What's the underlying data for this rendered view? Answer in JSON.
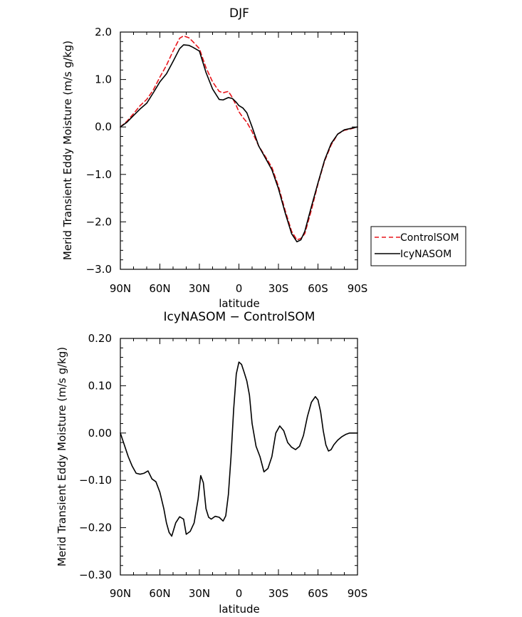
{
  "chart_data": [
    {
      "type": "line",
      "title": "DJF",
      "xlabel": "latitude",
      "ylabel": "Merid Transient Eddy Moisture (m/s g/kg)",
      "xlim": [
        90,
        -90
      ],
      "ylim": [
        -3.0,
        2.0
      ],
      "x_ticks": [
        90,
        60,
        30,
        0,
        -30,
        -60,
        -90
      ],
      "x_tick_labels": [
        "90N",
        "60N",
        "30N",
        "0",
        "30S",
        "60S",
        "90S"
      ],
      "y_ticks": [
        2.0,
        1.0,
        0.0,
        -1.0,
        -2.0,
        -3.0
      ],
      "y_tick_labels": [
        "2.0",
        "1.0",
        "0.0",
        "−1.0",
        "−2.0",
        "−3.0"
      ],
      "legend_position": "right",
      "series": [
        {
          "name": "ControlSOM",
          "color": "#e8151b",
          "dash": "dashed",
          "x": [
            90,
            85,
            80,
            75,
            70,
            65,
            60,
            55,
            50,
            45,
            42,
            38,
            35,
            30,
            25,
            20,
            15,
            12,
            8,
            5,
            2,
            0,
            -3,
            -6,
            -10,
            -15,
            -20,
            -25,
            -30,
            -35,
            -40,
            -44,
            -47,
            -50,
            -55,
            -60,
            -65,
            -70,
            -75,
            -80,
            -85,
            -90
          ],
          "y": [
            0.0,
            0.12,
            0.28,
            0.45,
            0.58,
            0.78,
            1.05,
            1.3,
            1.6,
            1.87,
            1.92,
            1.88,
            1.8,
            1.65,
            1.25,
            0.95,
            0.75,
            0.72,
            0.75,
            0.62,
            0.45,
            0.32,
            0.2,
            0.1,
            -0.1,
            -0.4,
            -0.62,
            -0.85,
            -1.25,
            -1.75,
            -2.2,
            -2.38,
            -2.35,
            -2.25,
            -1.75,
            -1.2,
            -0.72,
            -0.38,
            -0.15,
            -0.07,
            -0.04,
            0.0
          ]
        },
        {
          "name": "IcyNASOM",
          "color": "#000000",
          "dash": "solid",
          "x": [
            90,
            85,
            80,
            75,
            70,
            65,
            60,
            55,
            50,
            45,
            42,
            38,
            35,
            30,
            25,
            20,
            15,
            12,
            8,
            5,
            2,
            0,
            -3,
            -6,
            -10,
            -15,
            -20,
            -25,
            -30,
            -35,
            -40,
            -44,
            -47,
            -50,
            -55,
            -60,
            -65,
            -70,
            -75,
            -80,
            -85,
            -90
          ],
          "y": [
            0.0,
            0.1,
            0.24,
            0.38,
            0.5,
            0.72,
            0.95,
            1.12,
            1.38,
            1.65,
            1.73,
            1.72,
            1.68,
            1.6,
            1.15,
            0.8,
            0.58,
            0.57,
            0.62,
            0.6,
            0.52,
            0.45,
            0.4,
            0.3,
            0.0,
            -0.4,
            -0.65,
            -0.9,
            -1.3,
            -1.8,
            -2.25,
            -2.42,
            -2.38,
            -2.2,
            -1.68,
            -1.18,
            -0.7,
            -0.35,
            -0.15,
            -0.06,
            -0.03,
            0.0
          ]
        }
      ]
    },
    {
      "type": "line",
      "title": "IcyNASOM − ControlSOM",
      "xlabel": "latitude",
      "ylabel": "Merid Transient Eddy Moisture (m/s g/kg)",
      "xlim": [
        90,
        -90
      ],
      "ylim": [
        -0.3,
        0.2
      ],
      "x_ticks": [
        90,
        60,
        30,
        0,
        -30,
        -60,
        -90
      ],
      "x_tick_labels": [
        "90N",
        "60N",
        "30N",
        "0",
        "30S",
        "60S",
        "90S"
      ],
      "y_ticks": [
        0.2,
        0.1,
        0.0,
        -0.1,
        -0.2,
        -0.3
      ],
      "y_tick_labels": [
        "0.20",
        "0.10",
        "0.00",
        "−0.10",
        "−0.20",
        "−0.30"
      ],
      "series": [
        {
          "color": "#000000",
          "dash": "solid",
          "x": [
            90,
            87,
            84,
            81,
            78,
            75,
            72,
            69,
            66,
            63,
            60,
            57,
            55,
            53,
            51,
            48,
            45,
            42,
            40,
            37,
            34,
            31,
            29,
            27,
            25,
            23,
            21,
            18,
            15,
            12,
            10,
            8,
            6,
            4,
            2,
            0,
            -2,
            -4,
            -6,
            -8,
            -10,
            -13,
            -16,
            -19,
            -22,
            -25,
            -28,
            -31,
            -34,
            -37,
            -40,
            -43,
            -46,
            -49,
            -52,
            -55,
            -58,
            -60,
            -62,
            -64,
            -66,
            -68,
            -70,
            -72,
            -75,
            -78,
            -81,
            -84,
            -87,
            -90
          ],
          "y": [
            0.0,
            -0.025,
            -0.05,
            -0.07,
            -0.085,
            -0.087,
            -0.085,
            -0.08,
            -0.097,
            -0.103,
            -0.125,
            -0.16,
            -0.19,
            -0.21,
            -0.218,
            -0.19,
            -0.177,
            -0.182,
            -0.214,
            -0.208,
            -0.19,
            -0.14,
            -0.09,
            -0.105,
            -0.16,
            -0.178,
            -0.182,
            -0.176,
            -0.178,
            -0.186,
            -0.175,
            -0.13,
            -0.05,
            0.05,
            0.125,
            0.15,
            0.145,
            0.128,
            0.11,
            0.08,
            0.02,
            -0.028,
            -0.05,
            -0.082,
            -0.075,
            -0.05,
            0.0,
            0.015,
            0.005,
            -0.02,
            -0.03,
            -0.035,
            -0.028,
            -0.005,
            0.035,
            0.065,
            0.077,
            0.07,
            0.045,
            0.005,
            -0.025,
            -0.038,
            -0.035,
            -0.025,
            -0.015,
            -0.008,
            -0.003,
            0.0,
            0.0,
            0.0
          ]
        }
      ]
    }
  ]
}
